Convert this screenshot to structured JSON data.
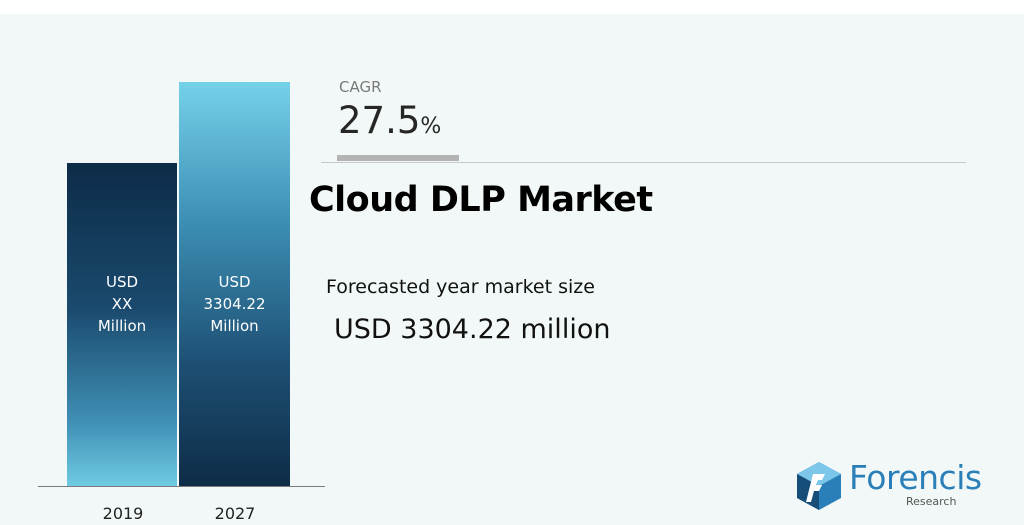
{
  "chart_data": {
    "type": "bar",
    "categories": [
      "2019",
      "2027"
    ],
    "values": [
      null,
      3304.22
    ],
    "bar_labels": [
      [
        "USD",
        "XX",
        "Million"
      ],
      [
        "USD",
        "3304.22",
        "Million"
      ]
    ],
    "title": "Cloud DLP Market",
    "xlabel": "",
    "ylabel": "",
    "grid": false
  },
  "cagr": {
    "label": "CAGR",
    "value": "27.5",
    "unit": "%"
  },
  "market": {
    "title": "Cloud DLP Market",
    "forecast_label": "Forecasted year market size",
    "forecast_value": "USD 3304.22 million"
  },
  "logo": {
    "name": "Forencis",
    "tagline": "Research"
  },
  "colors": {
    "background": "#f2f8f7",
    "bar_dark": "#0d2b47",
    "bar_light": "#6fcbe3",
    "logo_blue": "#2a7fb8"
  }
}
